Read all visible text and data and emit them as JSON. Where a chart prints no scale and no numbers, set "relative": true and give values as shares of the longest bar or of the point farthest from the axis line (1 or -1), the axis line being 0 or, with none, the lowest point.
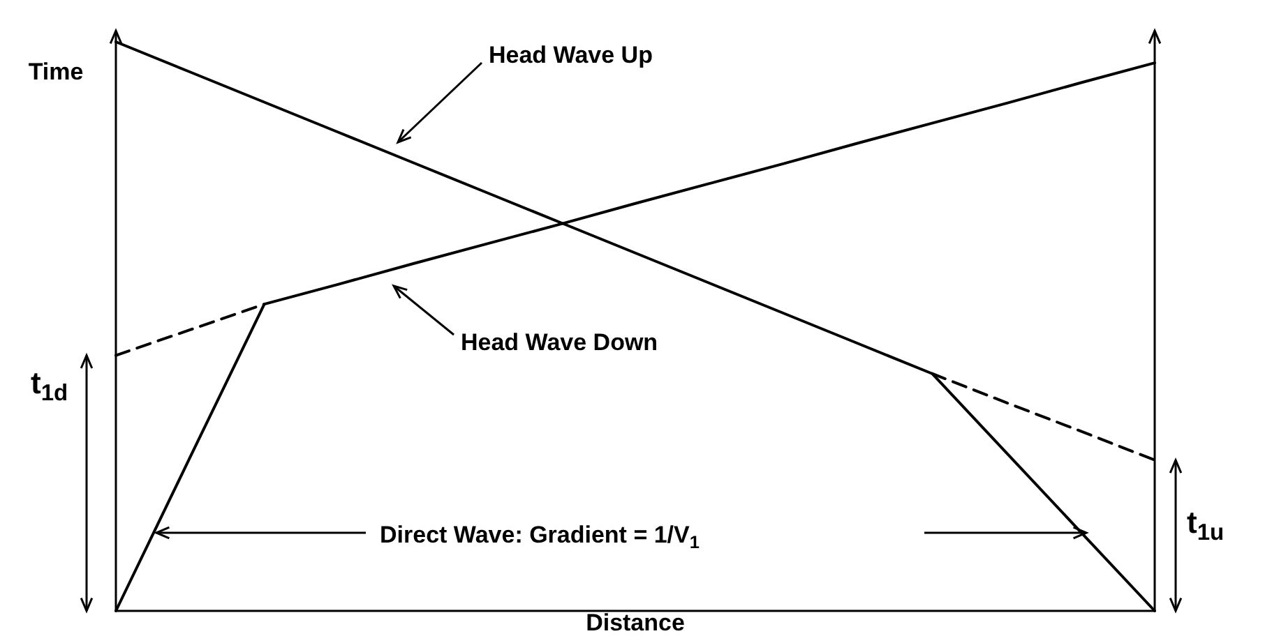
{
  "chart_data": {
    "type": "line",
    "relative": true,
    "xlabel": "Distance",
    "ylabel": "Time",
    "tick_labels": false,
    "marker": "none",
    "color": "#000000",
    "categories": [
      null,
      null,
      null,
      null,
      null,
      null,
      null,
      null,
      null,
      null,
      null,
      null,
      null,
      null,
      null
    ],
    "series": [
      {
        "line_style": "solid",
        "values": [
          0,
          0.27,
          0.539,
          0.574,
          0.61,
          0.645,
          0.68,
          0.716,
          0.751,
          0.786,
          0.822,
          0.857,
          0.892,
          0.928,
          0.963
        ]
      },
      {
        "line_style": "dashed",
        "values": [
          0.449,
          0.494,
          0.539,
          null,
          null,
          null,
          null,
          null,
          null,
          null,
          null,
          null,
          null,
          null,
          null
        ]
      },
      {
        "line_style": "solid",
        "values": [
          1,
          0.947,
          0.894,
          0.841,
          0.788,
          0.735,
          0.682,
          0.629,
          0.576,
          0.523,
          0.47,
          0.417,
          0.278,
          0.139,
          0
        ]
      },
      {
        "line_style": "dashed",
        "values": [
          null,
          null,
          null,
          null,
          null,
          null,
          null,
          null,
          null,
          null,
          null,
          0.417,
          0.366,
          0.316,
          0.265
        ]
      }
    ],
    "annotations": [
      "Head Wave Up",
      "Head Wave Down",
      "Direct Wave: Gradient = 1/V$_{1}$",
      "t$_{1d}$",
      "t$_{1u}$"
    ]
  }
}
